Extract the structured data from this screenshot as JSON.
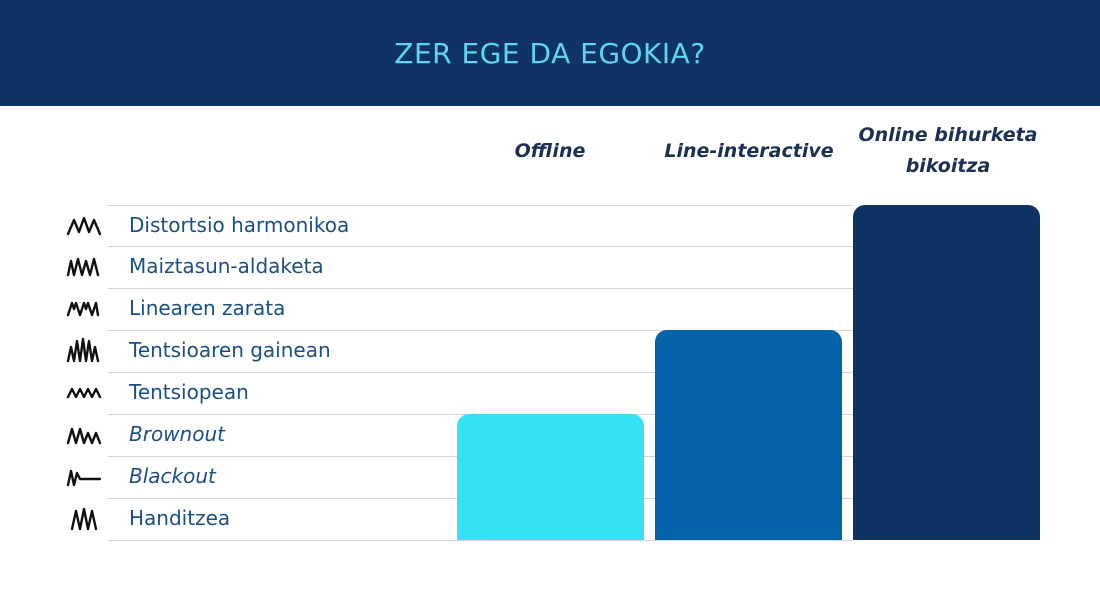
{
  "header": {
    "title": "ZER EGE DA EGOKIA?"
  },
  "columns": [
    {
      "label": "Offline",
      "color": "#35e1f4"
    },
    {
      "label": "Line-interactive",
      "color": "#0463a8"
    },
    {
      "label": "Online bihurketa bikoitza",
      "color": "#0f3463"
    }
  ],
  "rows": [
    {
      "label": "Distortsio harmonikoa",
      "icon": "harmonic-distortion-wave-icon",
      "italic": false
    },
    {
      "label": "Maiztasun-aldaketa",
      "icon": "frequency-variation-wave-icon",
      "italic": false
    },
    {
      "label": "Linearen zarata",
      "icon": "line-noise-wave-icon",
      "italic": false
    },
    {
      "label": "Tentsioaren gainean",
      "icon": "overvoltage-wave-icon",
      "italic": false
    },
    {
      "label": "Tentsiopean",
      "icon": "undervoltage-wave-icon",
      "italic": false
    },
    {
      "label": "Brownout",
      "icon": "brownout-wave-icon",
      "italic": true
    },
    {
      "label": "Blackout",
      "icon": "blackout-wave-icon",
      "italic": true
    },
    {
      "label": "Handitzea",
      "icon": "surge-wave-icon",
      "italic": false
    }
  ],
  "coverage": {
    "Offline": 3,
    "Line-interactive": 5,
    "Online bihurketa bikoitza": 8
  }
}
